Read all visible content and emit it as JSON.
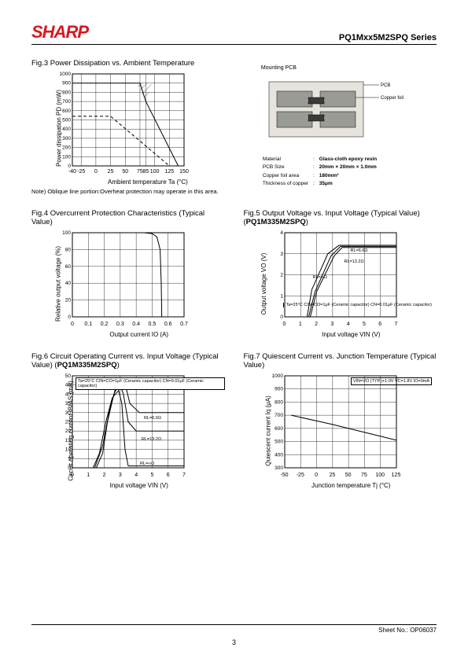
{
  "header": {
    "logo_text": "SHARP",
    "logo_color": "#d8181f",
    "series": "PQ1Mxx5M2SPQ Series"
  },
  "footer": {
    "sheet": "Sheet No.: OP06037",
    "page": "3"
  },
  "fig3": {
    "title": "Fig.3  Power Dissipation vs. Ambient Temperature",
    "ylabel": "Power dissipation PD (mW)",
    "xlabel": "Ambient temperature Ta (°C)",
    "note": "Note) Oblique line portion:Overheat protection may operate in this area.",
    "ylim": [
      0,
      1000
    ],
    "ytick_step": 100,
    "xlim": [
      -40,
      150
    ],
    "xticks": [
      -40,
      -25,
      0,
      25,
      50,
      75,
      85,
      100,
      125,
      150
    ],
    "background_color": "#ffffff",
    "grid_color": "#000000",
    "series": {
      "solid": [
        [
          -40,
          900
        ],
        [
          75,
          900
        ],
        [
          85,
          700
        ],
        [
          140,
          0
        ]
      ],
      "dash": [
        [
          -40,
          540
        ],
        [
          25,
          540
        ],
        [
          125,
          0
        ]
      ]
    },
    "hatch_region": [
      [
        75,
        900
      ],
      [
        85,
        900
      ],
      [
        85,
        700
      ],
      [
        75,
        900
      ]
    ]
  },
  "mounting_pcb": {
    "title": "Mounting PCB",
    "labels": {
      "pcb": "PCB",
      "copper": "Copper foil"
    },
    "info": {
      "Material": "Glass-cloth epoxy resin",
      "PCB Size": "20mm × 20mm × 1.0mm",
      "Copper foil area": "180mm²",
      "Thickness of copper": "35μm"
    },
    "colors": {
      "pcb_fill": "#e7e4de",
      "foil": "#9b9b95",
      "border": "#000000"
    }
  },
  "fig4": {
    "title": "Fig.4  Overcurrent Protection Characteristics (Typical Value)",
    "ylabel": "Relative output voltage (%)",
    "xlabel": "Output current IO (A)",
    "ylim": [
      0,
      100
    ],
    "ytick_step": 20,
    "xlim": [
      0,
      0.7
    ],
    "xtick_step": 0.1,
    "curve": [
      [
        0,
        100
      ],
      [
        0.45,
        100
      ],
      [
        0.5,
        99
      ],
      [
        0.53,
        95
      ],
      [
        0.55,
        80
      ],
      [
        0.557,
        40
      ],
      [
        0.56,
        5
      ],
      [
        0.56,
        0
      ]
    ]
  },
  "fig5": {
    "title_pre": "Fig.5  Output Voltage vs. Input Voltage (Typical Value) (",
    "title_bold": "PQ1M335M2SPQ",
    "title_post": ")",
    "ylabel": "Output voltage VO (V)",
    "xlabel": "Input voltage VIN (V)",
    "ylim": [
      0,
      4
    ],
    "ytick_step": 1,
    "xlim": [
      0,
      7
    ],
    "xtick_step": 1,
    "annotations": {
      "r66": "RL=6.6Ω",
      "r132": "RL=13.2Ω",
      "rinf": "RL=∞Ω",
      "cond": "Ta=25°C\nCIN=CO=1μF\n(Ceramic capacitor)\nCN=0.01μF\n(Ceramic capacitor)"
    },
    "curves": {
      "r66": [
        [
          1.6,
          0
        ],
        [
          2.0,
          1.2
        ],
        [
          3.1,
          2.9
        ],
        [
          3.6,
          3.3
        ],
        [
          7,
          3.3
        ]
      ],
      "r132": [
        [
          1.5,
          0
        ],
        [
          1.9,
          1.2
        ],
        [
          2.9,
          2.9
        ],
        [
          3.5,
          3.35
        ],
        [
          7,
          3.35
        ]
      ],
      "inf": [
        [
          1.4,
          0
        ],
        [
          1.7,
          1.3
        ],
        [
          2.7,
          3.0
        ],
        [
          3.4,
          3.4
        ],
        [
          7,
          3.4
        ]
      ]
    }
  },
  "fig6": {
    "title_pre": "Fig.6  Circuit Operating Current vs. Input Voltage (Typical Value) (",
    "title_bold": "PQ1M335M2SPQ",
    "title_post": ")",
    "ylabel": "Circuit operating current IBIAS (mA)",
    "xlabel": "Input voltage VIN (V)",
    "ylim": [
      0,
      50
    ],
    "ytick_step": 5,
    "xlim": [
      0,
      7
    ],
    "xtick_step": 1,
    "annotations": {
      "r66": "RL=6.6Ω",
      "r132": "RL=13.2Ω",
      "rinf": "RL=∞Ω",
      "cond": "Ta=25°C\nCIN=CO=1μF\n(Ceramic capacitor)\nCN=0.01μF\n(Ceramic capacitor)"
    },
    "curves": {
      "r66": [
        [
          1.5,
          0
        ],
        [
          1.9,
          8
        ],
        [
          2.2,
          25
        ],
        [
          2.6,
          40
        ],
        [
          3.0,
          47
        ],
        [
          3.3,
          46
        ],
        [
          3.6,
          35
        ],
        [
          4.2,
          30
        ],
        [
          7,
          30
        ]
      ],
      "r132": [
        [
          1.4,
          0
        ],
        [
          1.9,
          12
        ],
        [
          2.3,
          30
        ],
        [
          2.7,
          43
        ],
        [
          3.0,
          45
        ],
        [
          3.2,
          40
        ],
        [
          3.5,
          25
        ],
        [
          4.0,
          20
        ],
        [
          7,
          20
        ]
      ],
      "inf": [
        [
          1.3,
          0
        ],
        [
          1.7,
          8
        ],
        [
          2.1,
          25
        ],
        [
          2.5,
          38
        ],
        [
          2.9,
          42
        ],
        [
          3.1,
          35
        ],
        [
          3.3,
          10
        ],
        [
          3.5,
          1
        ],
        [
          7,
          1
        ]
      ]
    }
  },
  "fig7": {
    "title": "Fig.7  Quiescent Current vs. Junction Temperature (Typical Value)",
    "ylabel": "Quiescent current Iq (μA)",
    "xlabel": "Junction temperature Tj (°C)",
    "ylim": [
      300,
      1000
    ],
    "ytick_step": 100,
    "xlim": [
      -50,
      125
    ],
    "xtick_step": 25,
    "annotation": "VIN=VO (TYP.)+1.0V\nVC=1.8V\nIO=0mA",
    "curve": [
      [
        -40,
        700
      ],
      [
        25,
        630
      ],
      [
        125,
        510
      ]
    ]
  }
}
